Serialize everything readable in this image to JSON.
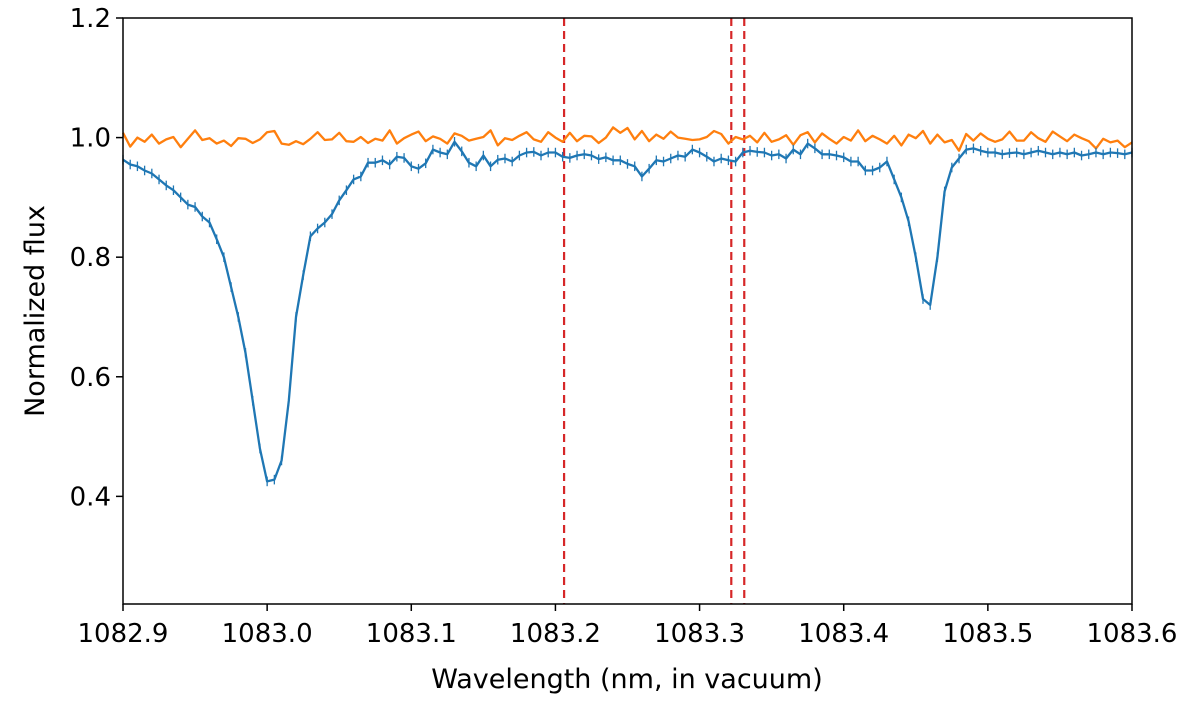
{
  "chart_data": {
    "type": "line",
    "title": "",
    "xlabel": "Wavelength (nm, in vacuum)",
    "ylabel": "Normalized flux",
    "xlim": [
      1082.9,
      1083.6
    ],
    "ylim": [
      0.22,
      1.2
    ],
    "xticks": [
      "1082.9",
      "1083.0",
      "1083.1",
      "1083.2",
      "1083.3",
      "1083.4",
      "1083.5",
      "1083.6"
    ],
    "yticks": [
      "0.4",
      "0.6",
      "0.8",
      "1.0",
      "1.2"
    ],
    "grid": false,
    "legend": "none",
    "vlines": [
      {
        "x": 1083.206,
        "color": "#d62728",
        "style": "dashed"
      },
      {
        "x": 1083.322,
        "color": "#d62728",
        "style": "dashed"
      },
      {
        "x": 1083.331,
        "color": "#d62728",
        "style": "dashed"
      }
    ],
    "series": [
      {
        "color": "#ff7f0e",
        "x": [
          1082.9,
          1082.905,
          1082.91,
          1082.915,
          1082.92,
          1082.925,
          1082.93,
          1082.935,
          1082.94,
          1082.945,
          1082.95,
          1082.955,
          1082.96,
          1082.965,
          1082.97,
          1082.975,
          1082.98,
          1082.985,
          1082.99,
          1082.995,
          1083.0,
          1083.005,
          1083.01,
          1083.015,
          1083.02,
          1083.025,
          1083.03,
          1083.035,
          1083.04,
          1083.045,
          1083.05,
          1083.055,
          1083.06,
          1083.065,
          1083.07,
          1083.075,
          1083.08,
          1083.085,
          1083.09,
          1083.095,
          1083.1,
          1083.105,
          1083.11,
          1083.115,
          1083.12,
          1083.125,
          1083.13,
          1083.135,
          1083.14,
          1083.145,
          1083.15,
          1083.155,
          1083.16,
          1083.165,
          1083.17,
          1083.175,
          1083.18,
          1083.185,
          1083.19,
          1083.195,
          1083.2,
          1083.205,
          1083.21,
          1083.215,
          1083.22,
          1083.225,
          1083.23,
          1083.235,
          1083.24,
          1083.245,
          1083.25,
          1083.255,
          1083.26,
          1083.265,
          1083.27,
          1083.275,
          1083.28,
          1083.285,
          1083.29,
          1083.295,
          1083.3,
          1083.305,
          1083.31,
          1083.315,
          1083.32,
          1083.325,
          1083.33,
          1083.335,
          1083.34,
          1083.345,
          1083.35,
          1083.355,
          1083.36,
          1083.365,
          1083.37,
          1083.375,
          1083.38,
          1083.385,
          1083.39,
          1083.395,
          1083.4,
          1083.405,
          1083.41,
          1083.415,
          1083.42,
          1083.425,
          1083.43,
          1083.435,
          1083.44,
          1083.445,
          1083.45,
          1083.455,
          1083.46,
          1083.465,
          1083.47,
          1083.475,
          1083.48,
          1083.485,
          1083.49,
          1083.495,
          1083.5,
          1083.505,
          1083.51,
          1083.515,
          1083.52,
          1083.525,
          1083.53,
          1083.535,
          1083.54,
          1083.545,
          1083.55,
          1083.555,
          1083.56,
          1083.565,
          1083.57,
          1083.575,
          1083.58,
          1083.585,
          1083.59,
          1083.595,
          1083.6
        ],
        "y": [
          1.008,
          0.985,
          1.0,
          0.993,
          1.005,
          0.99,
          0.997,
          1.001,
          0.984,
          0.998,
          1.012,
          0.996,
          0.999,
          0.99,
          0.995,
          0.986,
          0.999,
          0.998,
          0.991,
          0.997,
          1.009,
          1.011,
          0.99,
          0.988,
          0.994,
          0.989,
          0.998,
          1.009,
          0.996,
          0.997,
          1.008,
          0.994,
          0.993,
          1.001,
          0.991,
          0.998,
          0.995,
          1.012,
          0.99,
          0.999,
          1.005,
          1.01,
          0.994,
          1.002,
          0.998,
          0.99,
          1.007,
          1.003,
          0.995,
          0.998,
          1.001,
          1.012,
          0.987,
          0.999,
          0.996,
          1.003,
          1.009,
          0.997,
          0.993,
          1.009,
          1.0,
          0.993,
          1.008,
          0.994,
          1.003,
          1.002,
          0.991,
          1.0,
          1.017,
          1.008,
          1.016,
          0.997,
          1.011,
          0.994,
          1.005,
          0.998,
          1.01,
          1.0,
          0.998,
          0.996,
          0.997,
          1.001,
          1.011,
          1.006,
          0.99,
          1.001,
          0.997,
          1.003,
          0.992,
          1.008,
          0.993,
          0.997,
          1.004,
          0.988,
          1.004,
          1.009,
          0.992,
          1.007,
          0.998,
          0.99,
          1.001,
          0.995,
          1.012,
          0.994,
          1.003,
          0.997,
          0.99,
          1.003,
          0.987,
          1.005,
          0.999,
          1.011,
          0.99,
          1.005,
          0.992,
          0.996,
          0.978,
          1.006,
          0.995,
          1.007,
          0.998,
          0.993,
          0.997,
          1.01,
          0.995,
          0.995,
          1.009,
          0.999,
          0.993,
          1.01,
          1.002,
          0.994,
          1.005,
          0.999,
          0.994,
          0.982,
          0.998,
          0.992,
          0.995,
          0.984,
          0.992
        ]
      },
      {
        "color": "#1f77b4",
        "errorbars": true,
        "x": [
          1082.9,
          1082.905,
          1082.91,
          1082.915,
          1082.92,
          1082.925,
          1082.93,
          1082.935,
          1082.94,
          1082.945,
          1082.95,
          1082.955,
          1082.96,
          1082.965,
          1082.97,
          1082.975,
          1082.98,
          1082.985,
          1082.99,
          1082.995,
          1083.0,
          1083.005,
          1083.01,
          1083.015,
          1083.02,
          1083.025,
          1083.03,
          1083.035,
          1083.04,
          1083.045,
          1083.05,
          1083.055,
          1083.06,
          1083.065,
          1083.07,
          1083.075,
          1083.08,
          1083.085,
          1083.09,
          1083.095,
          1083.1,
          1083.105,
          1083.11,
          1083.115,
          1083.12,
          1083.125,
          1083.13,
          1083.135,
          1083.14,
          1083.145,
          1083.15,
          1083.155,
          1083.16,
          1083.165,
          1083.17,
          1083.175,
          1083.18,
          1083.185,
          1083.19,
          1083.195,
          1083.2,
          1083.205,
          1083.21,
          1083.215,
          1083.22,
          1083.225,
          1083.23,
          1083.235,
          1083.24,
          1083.245,
          1083.25,
          1083.255,
          1083.26,
          1083.265,
          1083.27,
          1083.275,
          1083.28,
          1083.285,
          1083.29,
          1083.295,
          1083.3,
          1083.305,
          1083.31,
          1083.315,
          1083.32,
          1083.325,
          1083.33,
          1083.335,
          1083.34,
          1083.345,
          1083.35,
          1083.355,
          1083.36,
          1083.365,
          1083.37,
          1083.375,
          1083.38,
          1083.385,
          1083.39,
          1083.395,
          1083.4,
          1083.405,
          1083.41,
          1083.415,
          1083.42,
          1083.425,
          1083.43,
          1083.435,
          1083.44,
          1083.445,
          1083.45,
          1083.455,
          1083.46,
          1083.465,
          1083.47,
          1083.475,
          1083.48,
          1083.485,
          1083.49,
          1083.495,
          1083.5,
          1083.505,
          1083.51,
          1083.515,
          1083.52,
          1083.525,
          1083.53,
          1083.535,
          1083.54,
          1083.545,
          1083.55,
          1083.555,
          1083.56,
          1083.565,
          1083.57,
          1083.575,
          1083.58,
          1083.585,
          1083.59,
          1083.595,
          1083.6
        ],
        "y": [
          0.963,
          0.955,
          0.952,
          0.945,
          0.94,
          0.93,
          0.92,
          0.912,
          0.9,
          0.888,
          0.884,
          0.868,
          0.858,
          0.83,
          0.8,
          0.75,
          0.7,
          0.64,
          0.56,
          0.48,
          0.425,
          0.428,
          0.46,
          0.56,
          0.7,
          0.77,
          0.835,
          0.848,
          0.858,
          0.872,
          0.895,
          0.912,
          0.93,
          0.935,
          0.958,
          0.958,
          0.962,
          0.955,
          0.968,
          0.966,
          0.952,
          0.948,
          0.957,
          0.98,
          0.975,
          0.972,
          0.993,
          0.977,
          0.958,
          0.952,
          0.97,
          0.952,
          0.963,
          0.965,
          0.96,
          0.97,
          0.975,
          0.976,
          0.97,
          0.975,
          0.975,
          0.968,
          0.966,
          0.97,
          0.972,
          0.97,
          0.964,
          0.967,
          0.962,
          0.962,
          0.956,
          0.952,
          0.935,
          0.948,
          0.962,
          0.96,
          0.965,
          0.97,
          0.968,
          0.98,
          0.975,
          0.968,
          0.96,
          0.965,
          0.962,
          0.96,
          0.975,
          0.978,
          0.976,
          0.975,
          0.97,
          0.972,
          0.965,
          0.98,
          0.972,
          0.99,
          0.982,
          0.972,
          0.972,
          0.97,
          0.967,
          0.96,
          0.96,
          0.945,
          0.945,
          0.95,
          0.96,
          0.93,
          0.9,
          0.86,
          0.8,
          0.73,
          0.72,
          0.8,
          0.91,
          0.95,
          0.965,
          0.98,
          0.982,
          0.978,
          0.975,
          0.975,
          0.972,
          0.974,
          0.975,
          0.972,
          0.975,
          0.978,
          0.975,
          0.972,
          0.975,
          0.972,
          0.975,
          0.97,
          0.972,
          0.975,
          0.972,
          0.975,
          0.974,
          0.972,
          0.975
        ],
        "yerr": [
          0.008,
          0.008,
          0.008,
          0.008,
          0.008,
          0.008,
          0.008,
          0.008,
          0.008,
          0.008,
          0.008,
          0.008,
          0.008,
          0.008,
          0.008,
          0.008,
          0.008,
          0.008,
          0.008,
          0.008,
          0.008,
          0.008,
          0.008,
          0.008,
          0.008,
          0.008,
          0.008,
          0.008,
          0.008,
          0.008,
          0.008,
          0.008,
          0.008,
          0.008,
          0.008,
          0.008,
          0.008,
          0.008,
          0.008,
          0.008,
          0.008,
          0.008,
          0.008,
          0.008,
          0.008,
          0.008,
          0.008,
          0.008,
          0.008,
          0.008,
          0.008,
          0.008,
          0.008,
          0.008,
          0.008,
          0.008,
          0.008,
          0.008,
          0.008,
          0.008,
          0.008,
          0.008,
          0.008,
          0.008,
          0.008,
          0.008,
          0.008,
          0.008,
          0.008,
          0.008,
          0.008,
          0.008,
          0.008,
          0.008,
          0.008,
          0.008,
          0.008,
          0.008,
          0.008,
          0.008,
          0.008,
          0.008,
          0.008,
          0.008,
          0.008,
          0.008,
          0.008,
          0.008,
          0.008,
          0.008,
          0.008,
          0.008,
          0.008,
          0.008,
          0.008,
          0.008,
          0.008,
          0.008,
          0.008,
          0.008,
          0.008,
          0.008,
          0.008,
          0.008,
          0.008,
          0.008,
          0.008,
          0.008,
          0.008,
          0.008,
          0.008,
          0.008,
          0.008,
          0.008,
          0.008,
          0.008,
          0.008,
          0.008,
          0.008,
          0.008,
          0.008,
          0.008,
          0.008,
          0.008,
          0.008,
          0.008,
          0.008,
          0.008,
          0.008,
          0.008,
          0.008,
          0.008,
          0.008,
          0.008,
          0.008,
          0.008,
          0.008,
          0.008,
          0.008,
          0.008,
          0.008
        ]
      }
    ]
  }
}
